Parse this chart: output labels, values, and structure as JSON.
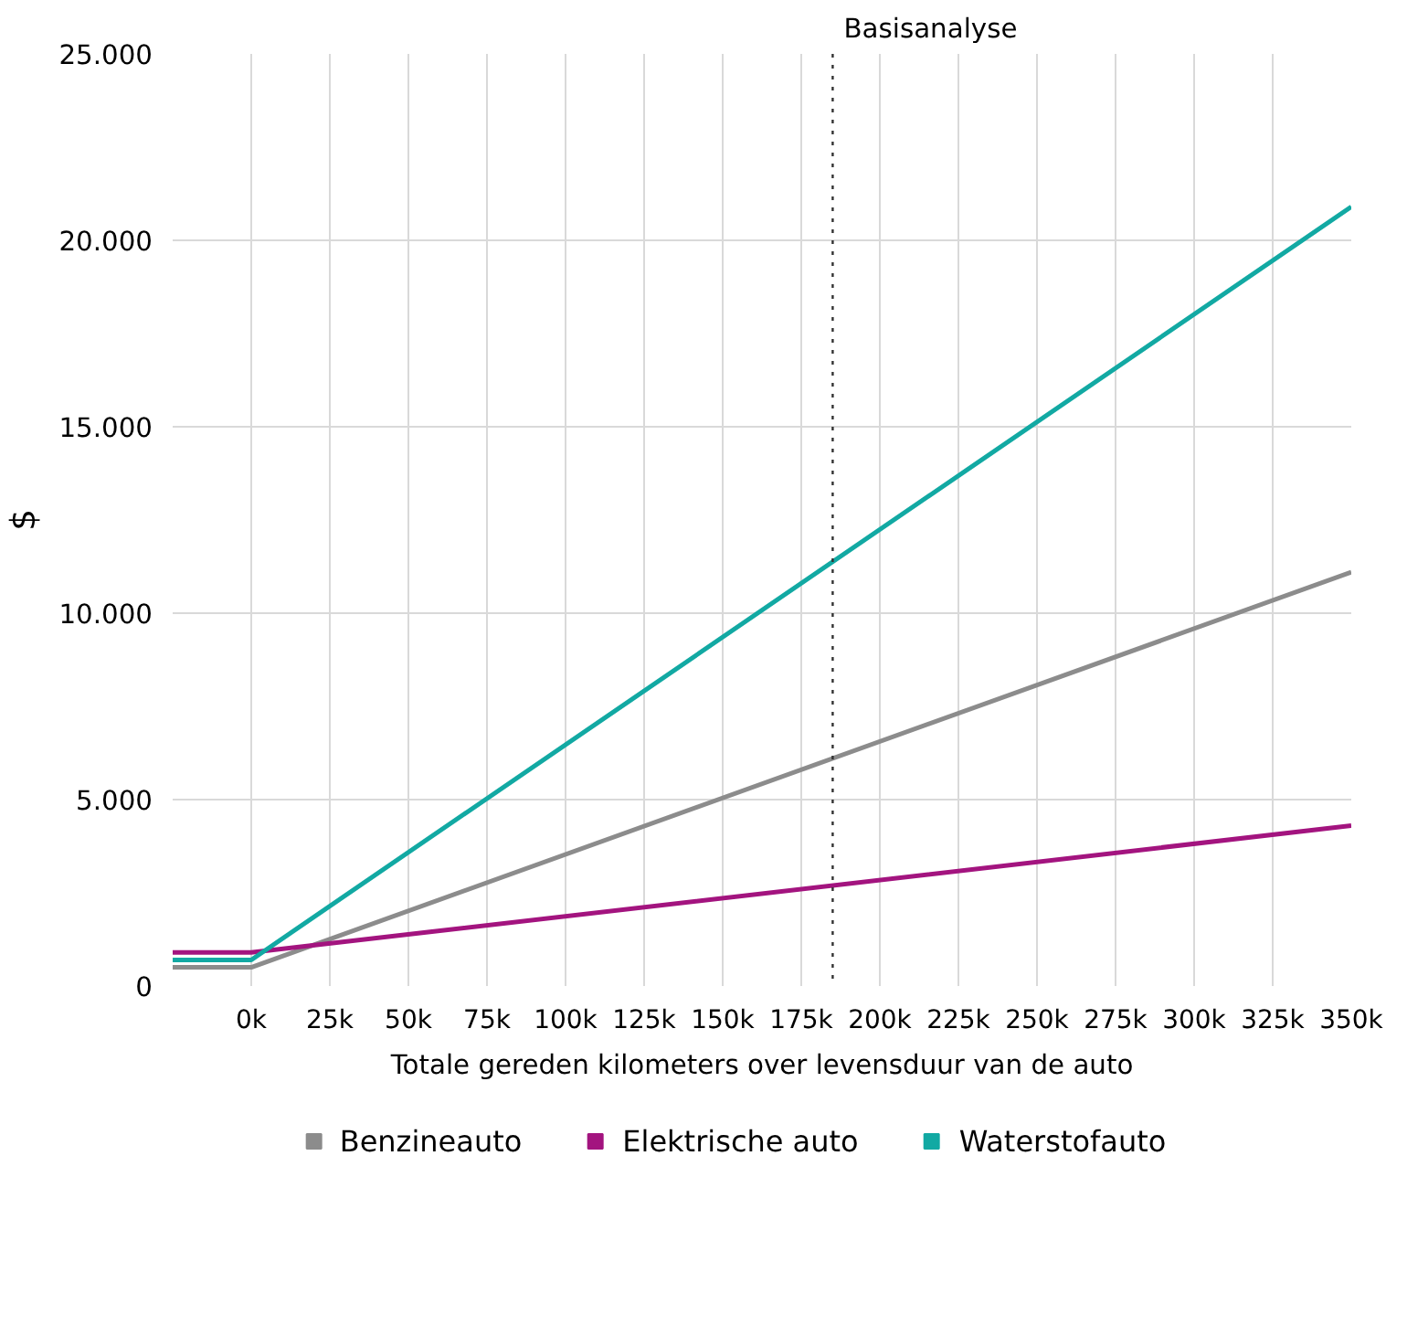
{
  "chart_data": {
    "type": "line",
    "xlabel": "Totale gereden kilometers over levensduur van de auto",
    "ylabel": "$",
    "x": [
      -25000,
      0,
      350000
    ],
    "series": [
      {
        "name": "Benzineauto",
        "color": "#8c8c8c",
        "values": [
          500,
          500,
          11100
        ]
      },
      {
        "name": "Elektrische auto",
        "color": "#a3147f",
        "values": [
          900,
          900,
          4300
        ]
      },
      {
        "name": "Waterstofauto",
        "color": "#12a9a3",
        "values": [
          700,
          700,
          20900
        ]
      }
    ],
    "xlim": [
      -25000,
      350000
    ],
    "xticks": [
      {
        "value": 0,
        "label": "0k"
      },
      {
        "value": 25000,
        "label": "25k"
      },
      {
        "value": 50000,
        "label": "50k"
      },
      {
        "value": 75000,
        "label": "75k"
      },
      {
        "value": 100000,
        "label": "100k"
      },
      {
        "value": 125000,
        "label": "125k"
      },
      {
        "value": 150000,
        "label": "150k"
      },
      {
        "value": 175000,
        "label": "175k"
      },
      {
        "value": 200000,
        "label": "200k"
      },
      {
        "value": 225000,
        "label": "225k"
      },
      {
        "value": 250000,
        "label": "250k"
      },
      {
        "value": 275000,
        "label": "275k"
      },
      {
        "value": 300000,
        "label": "300k"
      },
      {
        "value": 325000,
        "label": "325k"
      },
      {
        "value": 350000,
        "label": "350k"
      }
    ],
    "ylim": [
      0,
      25000
    ],
    "yticks": [
      {
        "value": 0,
        "label": "0"
      },
      {
        "value": 5000,
        "label": "5.000"
      },
      {
        "value": 10000,
        "label": "10.000"
      },
      {
        "value": 15000,
        "label": "15.000"
      },
      {
        "value": 20000,
        "label": "20.000"
      },
      {
        "value": 25000,
        "label": "25.000"
      }
    ],
    "ref_lines": [
      {
        "axis": "x",
        "value": 185000,
        "label": "Basisanalyse",
        "color": "#333333",
        "line_style": "dotted"
      }
    ],
    "grid": true,
    "legend": "bottom",
    "marker": "none",
    "line_style": "solid"
  }
}
